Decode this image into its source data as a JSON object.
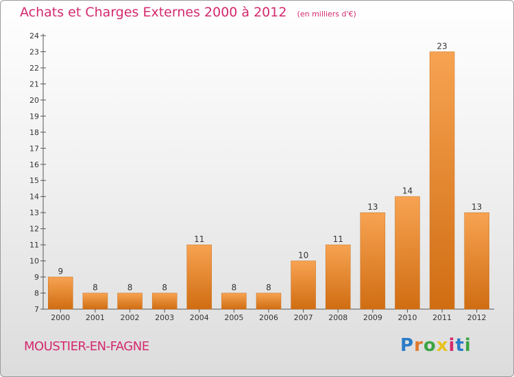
{
  "header": {
    "title": "Achats et Charges Externes 2000 à 2012",
    "unit": "(en milliers d'€)"
  },
  "footer": {
    "commune": "MOUSTIER-EN-FAGNE",
    "logo": "Proxiti"
  },
  "colors": {
    "title": "#d4286e",
    "bar_light": "#f7a352",
    "bar_dark": "#d06d12",
    "axis": "#555555"
  },
  "chart_data": {
    "type": "bar",
    "title": "Achats et Charges Externes 2000 à 2012",
    "subtitle": "(en milliers d'€)",
    "categories": [
      "2000",
      "2001",
      "2002",
      "2003",
      "2004",
      "2005",
      "2006",
      "2007",
      "2008",
      "2009",
      "2010",
      "2011",
      "2012"
    ],
    "values": [
      9,
      8,
      8,
      8,
      11,
      8,
      8,
      10,
      11,
      13,
      14,
      23,
      13
    ],
    "data_labels": [
      "9",
      "8",
      "8",
      "8",
      "11",
      "8",
      "8",
      "10",
      "11",
      "13",
      "14",
      "23",
      "13"
    ],
    "ylim": [
      7,
      24
    ],
    "yticks": [
      7,
      8,
      9,
      10,
      11,
      12,
      13,
      14,
      15,
      16,
      17,
      18,
      19,
      20,
      21,
      22,
      23,
      24
    ],
    "xlabel": "",
    "ylabel": "",
    "grid": false,
    "legend": "none"
  }
}
